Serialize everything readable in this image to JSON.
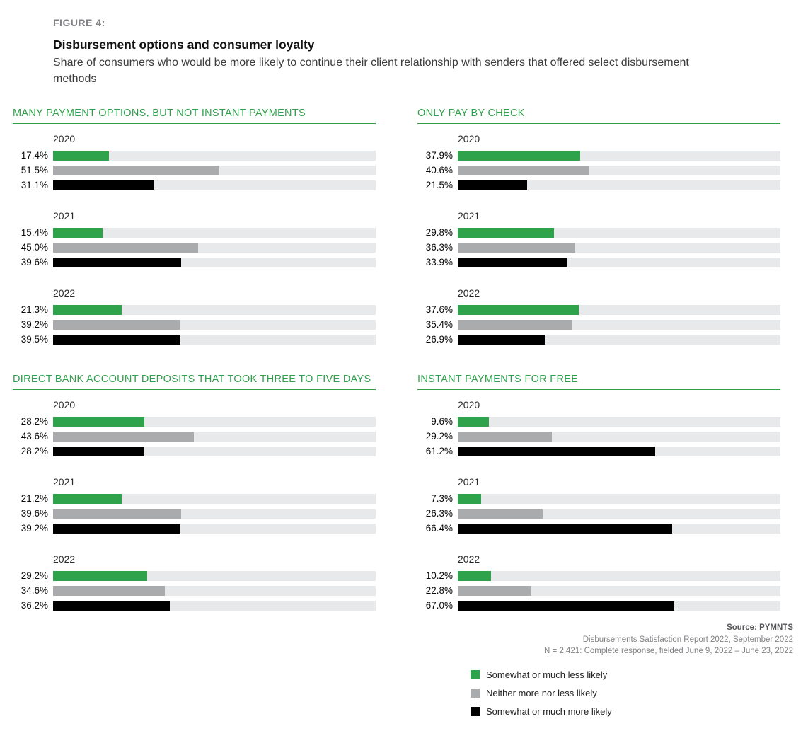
{
  "figure": {
    "label": "FIGURE 4:",
    "title": "Disbursement options and consumer loyalty",
    "subtitle": "Share of consumers who would be more likely to continue their client relationship with senders that offered select disbursement methods"
  },
  "colors": {
    "green": "#2fa24c",
    "gray": "#a9abad",
    "black": "#000000",
    "track": "#e8e9ea",
    "title_green": "#2ea14a"
  },
  "legend": [
    {
      "label": "Somewhat or much less likely",
      "color": "#2fa24c"
    },
    {
      "label": "Neither more nor less likely",
      "color": "#a9abad"
    },
    {
      "label": "Somewhat or much more likely",
      "color": "#000000"
    }
  ],
  "source": {
    "line1": "Source: PYMNTS",
    "line2": "Disbursements Satisfaction Report 2022, September 2022",
    "line3": "N = 2,421: Complete response, fielded June 9, 2022 – June 23, 2022"
  },
  "chart_data": [
    {
      "type": "bar",
      "id": "many-payment-options-not-instant",
      "title": "MANY PAYMENT OPTIONS, BUT NOT INSTANT PAYMENTS",
      "orientation": "horizontal",
      "unit": "%",
      "xlim": [
        0,
        100
      ],
      "series_labels": [
        "Somewhat or much less likely",
        "Neither more nor less likely",
        "Somewhat or much more likely"
      ],
      "groups": [
        {
          "year": "2020",
          "values": [
            17.4,
            51.5,
            31.1
          ]
        },
        {
          "year": "2021",
          "values": [
            15.4,
            45.0,
            39.6
          ]
        },
        {
          "year": "2022",
          "values": [
            21.3,
            39.2,
            39.5
          ]
        }
      ]
    },
    {
      "type": "bar",
      "id": "only-pay-by-check",
      "title": "ONLY PAY BY CHECK",
      "orientation": "horizontal",
      "unit": "%",
      "xlim": [
        0,
        100
      ],
      "series_labels": [
        "Somewhat or much less likely",
        "Neither more nor less likely",
        "Somewhat or much more likely"
      ],
      "groups": [
        {
          "year": "2020",
          "values": [
            37.9,
            40.6,
            21.5
          ]
        },
        {
          "year": "2021",
          "values": [
            29.8,
            36.3,
            33.9
          ]
        },
        {
          "year": "2022",
          "values": [
            37.6,
            35.4,
            26.9
          ]
        }
      ]
    },
    {
      "type": "bar",
      "id": "direct-bank-deposits-three-to-five-days",
      "title": "DIRECT BANK ACCOUNT DEPOSITS THAT TOOK THREE TO FIVE DAYS",
      "orientation": "horizontal",
      "unit": "%",
      "xlim": [
        0,
        100
      ],
      "series_labels": [
        "Somewhat or much less likely",
        "Neither more nor less likely",
        "Somewhat or much more likely"
      ],
      "groups": [
        {
          "year": "2020",
          "values": [
            28.2,
            43.6,
            28.2
          ]
        },
        {
          "year": "2021",
          "values": [
            21.2,
            39.6,
            39.2
          ]
        },
        {
          "year": "2022",
          "values": [
            29.2,
            34.6,
            36.2
          ]
        }
      ]
    },
    {
      "type": "bar",
      "id": "instant-payments-for-free",
      "title": "INSTANT PAYMENTS FOR FREE",
      "orientation": "horizontal",
      "unit": "%",
      "xlim": [
        0,
        100
      ],
      "series_labels": [
        "Somewhat or much less likely",
        "Neither more nor less likely",
        "Somewhat or much more likely"
      ],
      "groups": [
        {
          "year": "2020",
          "values": [
            9.6,
            29.2,
            61.2
          ]
        },
        {
          "year": "2021",
          "values": [
            7.3,
            26.3,
            66.4
          ]
        },
        {
          "year": "2022",
          "values": [
            10.2,
            22.8,
            67.0
          ]
        }
      ]
    }
  ]
}
